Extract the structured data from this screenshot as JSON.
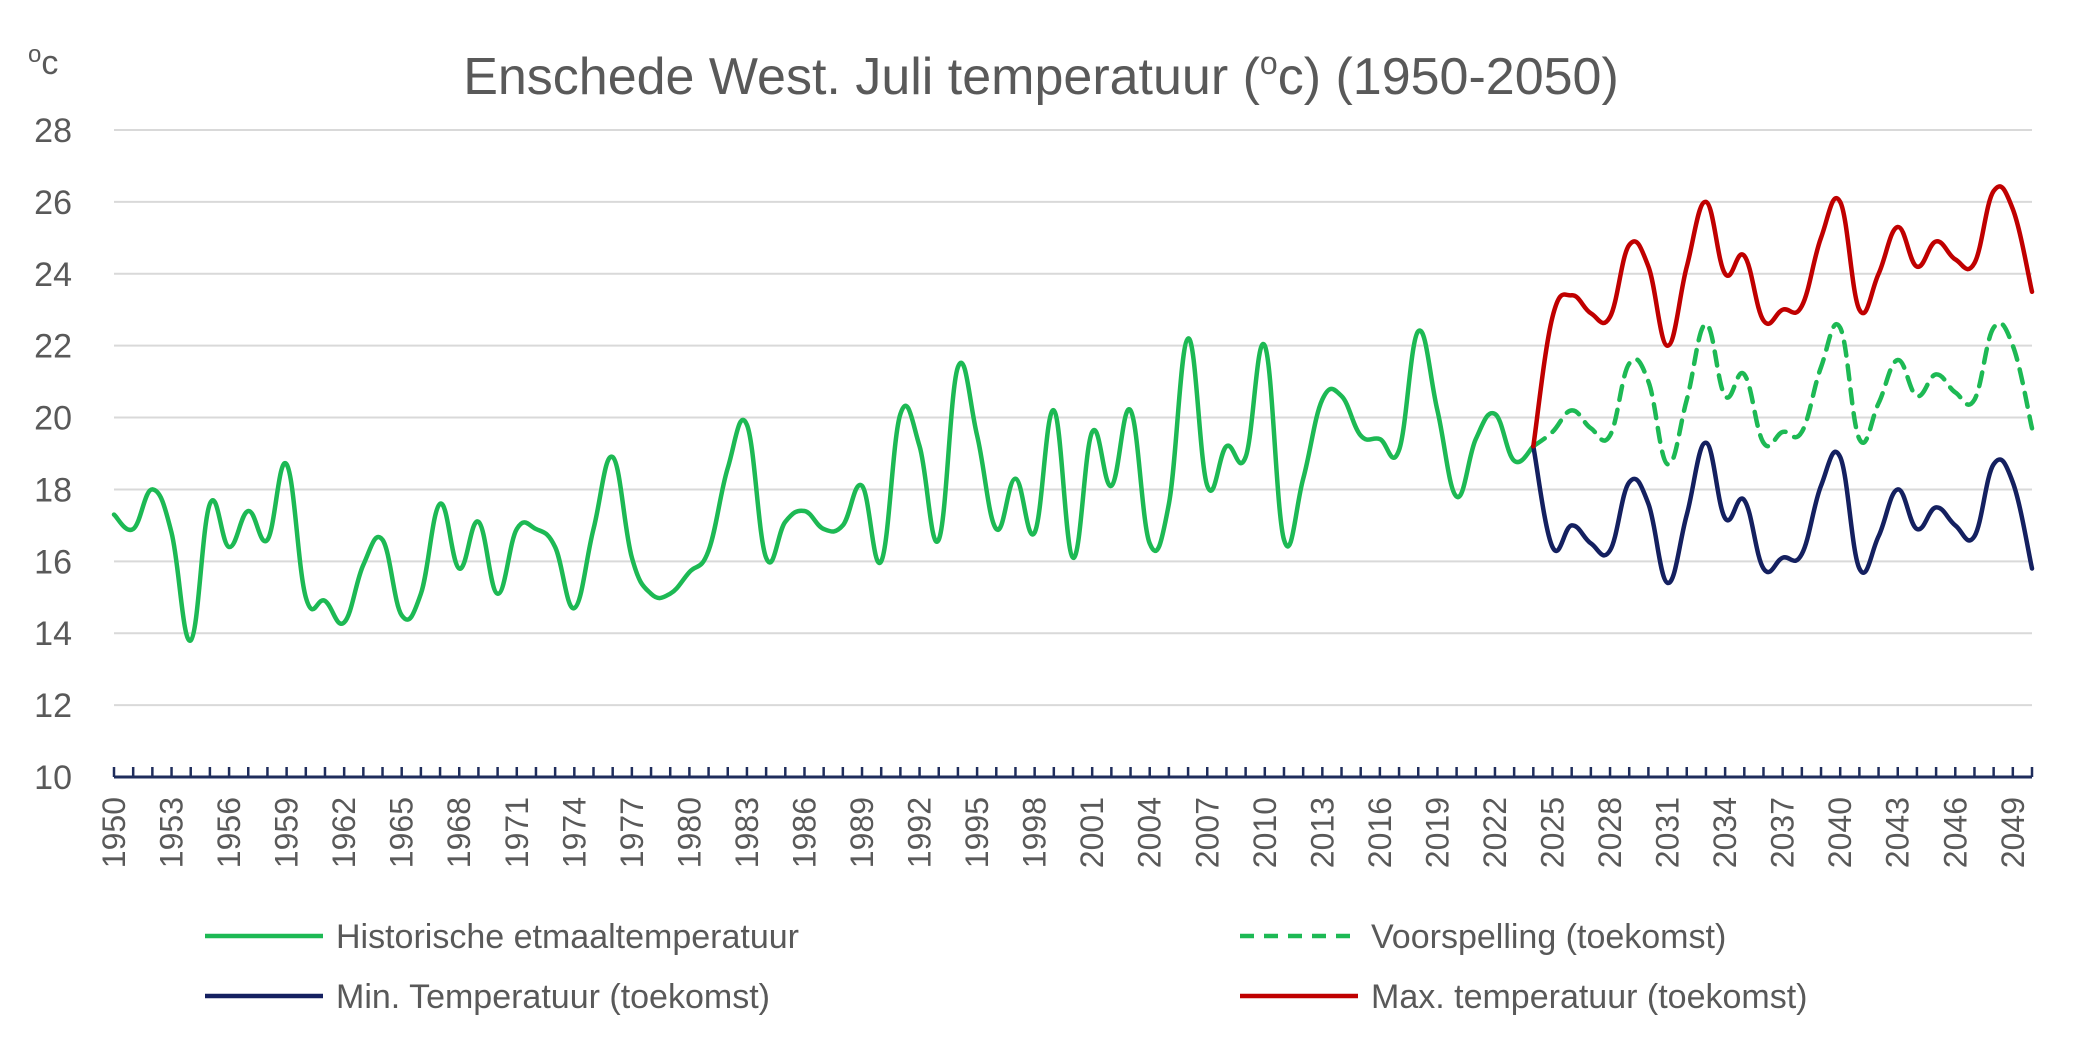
{
  "chart_data": {
    "type": "line",
    "title_main": "Enschede West. Juli temperatuur (",
    "title_sup": "o",
    "title_end": "c) (1950-2050)",
    "unit_sup": "o",
    "unit_main": "c",
    "ylim": [
      10,
      28
    ],
    "y_ticks": [
      "10",
      "12",
      "14",
      "16",
      "18",
      "20",
      "22",
      "24",
      "26",
      "28"
    ],
    "x_ticks": [
      "1950",
      "1953",
      "1956",
      "1959",
      "1962",
      "1965",
      "1968",
      "1971",
      "1974",
      "1977",
      "1980",
      "1983",
      "1986",
      "1989",
      "1992",
      "1995",
      "1998",
      "2001",
      "2004",
      "2007",
      "2010",
      "2013",
      "2016",
      "2019",
      "2022",
      "2025",
      "2028",
      "2031",
      "2034",
      "2037",
      "2040",
      "2043",
      "2046",
      "2049"
    ],
    "grid": true,
    "legend_position": "bottom",
    "series": [
      {
        "name": "Historische etmaaltemperatuur",
        "color": "#1db954",
        "dash": "solid",
        "x": [
          1950,
          1951,
          1952,
          1953,
          1954,
          1955,
          1956,
          1957,
          1958,
          1959,
          1960,
          1961,
          1962,
          1963,
          1964,
          1965,
          1966,
          1967,
          1968,
          1969,
          1970,
          1971,
          1972,
          1973,
          1974,
          1975,
          1976,
          1977,
          1978,
          1979,
          1980,
          1981,
          1982,
          1983,
          1984,
          1985,
          1986,
          1987,
          1988,
          1989,
          1990,
          1991,
          1992,
          1993,
          1994,
          1995,
          1996,
          1997,
          1998,
          1999,
          2000,
          2001,
          2002,
          2003,
          2004,
          2005,
          2006,
          2007,
          2008,
          2009,
          2010,
          2011,
          2012,
          2013,
          2014,
          2015,
          2016,
          2017,
          2018,
          2019,
          2020,
          2021,
          2022,
          2023,
          2024
        ],
        "values": [
          17.3,
          16.9,
          18.0,
          16.8,
          13.8,
          17.6,
          16.4,
          17.4,
          16.6,
          18.7,
          15.0,
          14.9,
          14.3,
          15.9,
          16.6,
          14.5,
          15.1,
          17.6,
          15.8,
          17.1,
          15.1,
          16.9,
          16.9,
          16.4,
          14.7,
          16.9,
          18.9,
          16.1,
          15.1,
          15.1,
          15.7,
          16.3,
          18.6,
          19.8,
          16.1,
          17.1,
          17.4,
          16.9,
          17.0,
          18.1,
          16.0,
          20.1,
          19.2,
          16.6,
          21.4,
          19.5,
          16.9,
          18.3,
          16.8,
          20.2,
          16.1,
          19.6,
          18.1,
          20.2,
          16.5,
          17.6,
          22.2,
          18.1,
          19.2,
          18.9,
          22.0,
          16.6,
          18.3,
          20.5,
          20.6,
          19.5,
          19.4,
          19.1,
          22.4,
          20.2,
          17.8,
          19.4,
          20.1,
          18.8,
          19.2
        ]
      },
      {
        "name": "Voorspelling (toekomst)",
        "color": "#1db954",
        "dash": "dashed",
        "x": [
          2024,
          2025,
          2026,
          2027,
          2028,
          2029,
          2030,
          2031,
          2032,
          2033,
          2034,
          2035,
          2036,
          2037,
          2038,
          2039,
          2040,
          2041,
          2042,
          2043,
          2044,
          2045,
          2046,
          2047,
          2048,
          2049,
          2050
        ],
        "values": [
          19.2,
          19.6,
          20.2,
          19.7,
          19.5,
          21.5,
          21.0,
          18.7,
          20.5,
          22.6,
          20.6,
          21.2,
          19.3,
          19.6,
          19.6,
          21.4,
          22.5,
          19.4,
          20.4,
          21.6,
          20.6,
          21.2,
          20.7,
          20.5,
          22.5,
          22.0,
          19.7
        ]
      },
      {
        "name": "Min. Temperatuur (toekomst)",
        "color": "#142060",
        "dash": "solid",
        "x": [
          2024,
          2025,
          2026,
          2027,
          2028,
          2029,
          2030,
          2031,
          2032,
          2033,
          2034,
          2035,
          2036,
          2037,
          2038,
          2039,
          2040,
          2041,
          2042,
          2043,
          2044,
          2045,
          2046,
          2047,
          2048,
          2049,
          2050
        ],
        "values": [
          19.2,
          16.4,
          17.0,
          16.5,
          16.3,
          18.2,
          17.6,
          15.4,
          17.3,
          19.3,
          17.2,
          17.7,
          15.8,
          16.1,
          16.2,
          18.1,
          18.9,
          15.8,
          16.7,
          18.0,
          16.9,
          17.5,
          17.0,
          16.7,
          18.7,
          18.2,
          15.8
        ]
      },
      {
        "name": "Max. temperatuur (toekomst)",
        "color": "#c00000",
        "dash": "solid",
        "x": [
          2024,
          2025,
          2026,
          2027,
          2028,
          2029,
          2030,
          2031,
          2032,
          2033,
          2034,
          2035,
          2036,
          2037,
          2038,
          2039,
          2040,
          2041,
          2042,
          2043,
          2044,
          2045,
          2046,
          2047,
          2048,
          2049,
          2050
        ],
        "values": [
          19.2,
          22.8,
          23.4,
          22.9,
          22.8,
          24.8,
          24.2,
          22.0,
          24.2,
          26.0,
          24.0,
          24.5,
          22.7,
          23.0,
          23.1,
          25.0,
          26.0,
          23.0,
          24.0,
          25.3,
          24.2,
          24.9,
          24.4,
          24.3,
          26.3,
          25.8,
          23.5
        ]
      }
    ]
  }
}
